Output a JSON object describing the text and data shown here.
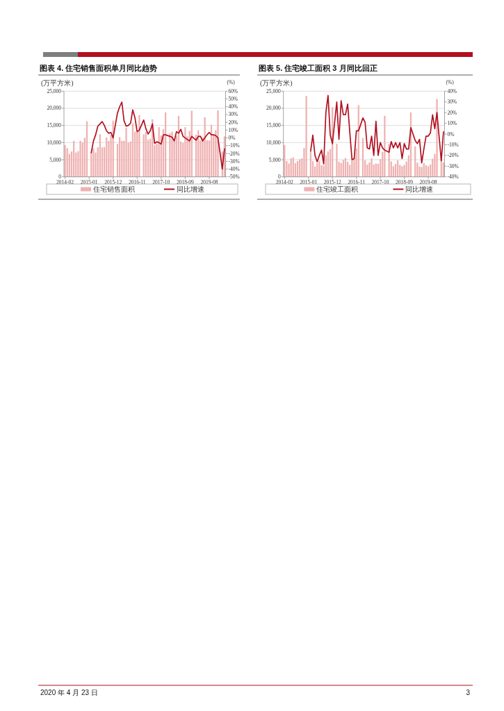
{
  "chart_data": [
    {
      "type": "bar",
      "title": "图表 4. 住宅销售面积单月同比趋势",
      "ylabel": "(万平方米)",
      "y2label": "(%)",
      "categories": [
        "2014-02",
        null,
        null,
        null,
        null,
        null,
        null,
        null,
        null,
        null,
        null,
        "2015-01",
        null,
        null,
        null,
        null,
        null,
        null,
        null,
        null,
        null,
        null,
        "2015-12",
        null,
        null,
        null,
        null,
        null,
        null,
        null,
        null,
        null,
        null,
        "2016-11",
        null,
        null,
        null,
        null,
        null,
        null,
        null,
        null,
        null,
        null,
        "2017-10",
        null,
        null,
        null,
        null,
        null,
        null,
        null,
        null,
        null,
        null,
        "2018-09",
        null,
        null,
        null,
        null,
        null,
        null,
        null,
        null,
        null,
        null,
        "2019-08",
        null,
        null,
        null,
        null,
        null,
        null,
        null
      ],
      "series": [
        {
          "name": "住宅销售面积",
          "color": "#efb1b1",
          "values": [
            9300,
            8400,
            6700,
            7400,
            10500,
            7100,
            7500,
            10500,
            10000,
            11400,
            16200,
            null,
            7300,
            8300,
            7100,
            8600,
            12400,
            8600,
            8700,
            11500,
            10500,
            12200,
            16400,
            null,
            9600,
            11600,
            10500,
            10500,
            14300,
            10000,
            10300,
            15600,
            13200,
            13200,
            18000,
            null,
            12400,
            13100,
            10800,
            11100,
            16800,
            9300,
            9700,
            14500,
            12100,
            13900,
            18800,
            null,
            12700,
            13200,
            10400,
            12000,
            17800,
            10300,
            9900,
            14500,
            11800,
            13400,
            19300,
            null,
            12300,
            13600,
            10600,
            11500,
            17400,
            10700,
            10600,
            15200,
            12200,
            13600,
            19400,
            null,
            7400,
            11800
          ]
        },
        {
          "name": "同比增速",
          "type": "line",
          "axis": "y2",
          "color": "#b2101f",
          "values": [
            null,
            null,
            null,
            null,
            null,
            null,
            null,
            null,
            null,
            null,
            null,
            null,
            -19,
            -4,
            4,
            15,
            18,
            21,
            16,
            9,
            6,
            7,
            0,
            null,
            32,
            40,
            46,
            22,
            15,
            16,
            19,
            36,
            26,
            8,
            10,
            null,
            23,
            12,
            5,
            9,
            18,
            -7,
            -5,
            -6,
            -8,
            4,
            4,
            null,
            2,
            1,
            -4,
            8,
            6,
            11,
            2,
            0,
            -2,
            -4,
            2,
            null,
            -3,
            2,
            2,
            -4,
            0,
            4,
            7,
            4,
            4,
            3,
            0,
            null,
            -40,
            -14
          ]
        }
      ],
      "ylim": [
        0,
        25000
      ],
      "yticks": [
        0,
        {
          "value": 5000,
          "label": "5,000"
        },
        {
          "value": 10000,
          "label": "10,000"
        },
        {
          "value": 15000,
          "label": "15,000"
        },
        {
          "value": 20000,
          "label": "20,000"
        },
        {
          "value": 25000,
          "label": "25,000"
        }
      ],
      "y2lim": [
        -50,
        60
      ],
      "y2ticks": [
        {
          "value": -50,
          "label": "-50%"
        },
        {
          "value": -40,
          "label": "-40%"
        },
        {
          "value": -30,
          "label": "-30%"
        },
        {
          "value": -20,
          "label": "-20%"
        },
        {
          "value": -10,
          "label": "-10%"
        },
        {
          "value": 0,
          "label": "0%"
        },
        {
          "value": 10,
          "label": "10%"
        },
        {
          "value": 20,
          "label": "20%"
        },
        {
          "value": 30,
          "label": "30%"
        },
        {
          "value": 40,
          "label": "40%"
        },
        {
          "value": 50,
          "label": "50%"
        },
        {
          "value": 60,
          "label": "60%"
        }
      ],
      "grid": "y",
      "legend": "bottom"
    },
    {
      "type": "bar",
      "title": "图表 5. 住宅竣工面积 3 月同比回正",
      "ylabel": "(万平方米)",
      "y2label": "(%)",
      "categories": [
        "2014-02",
        null,
        null,
        null,
        null,
        null,
        null,
        null,
        null,
        null,
        null,
        "2015-01",
        null,
        null,
        null,
        null,
        null,
        null,
        null,
        null,
        null,
        null,
        "2015-12",
        null,
        null,
        null,
        null,
        null,
        null,
        null,
        null,
        null,
        null,
        "2016-11",
        null,
        null,
        null,
        null,
        null,
        null,
        null,
        null,
        null,
        null,
        "2017-10",
        null,
        null,
        null,
        null,
        null,
        null,
        null,
        null,
        null,
        null,
        "2018-09",
        null,
        null,
        null,
        null,
        null,
        null,
        null,
        null,
        null,
        null,
        "2019-08",
        null,
        null,
        null,
        null,
        null,
        null,
        null
      ],
      "series": [
        {
          "name": "住宅竣工面积",
          "color": "#efb1b1",
          "values": [
            9300,
            4600,
            3900,
            5400,
            5700,
            4000,
            4600,
            5100,
            5400,
            8400,
            23600,
            null,
            7400,
            4600,
            3000,
            4000,
            4700,
            3400,
            3300,
            6300,
            7400,
            8100,
            20300,
            null,
            9600,
            4400,
            4000,
            4900,
            5500,
            4400,
            3500,
            4800,
            5700,
            8300,
            20900,
            null,
            11300,
            4800,
            3600,
            4200,
            5400,
            3600,
            3900,
            3800,
            5200,
            7300,
            17800,
            null,
            9600,
            4500,
            3100,
            3800,
            4800,
            3500,
            3100,
            3500,
            4500,
            6300,
            18800,
            null,
            8900,
            4100,
            3000,
            2900,
            4000,
            3400,
            3100,
            3600,
            5300,
            6700,
            22700,
            null,
            6700,
            4200
          ]
        },
        {
          "name": "同比增速",
          "type": "line",
          "axis": "y2",
          "color": "#b2101f",
          "values": [
            null,
            null,
            null,
            null,
            null,
            null,
            null,
            null,
            null,
            null,
            null,
            null,
            -16,
            -1,
            -20,
            -26,
            -20,
            -15,
            -28,
            20,
            36,
            -1,
            -9,
            null,
            30,
            -5,
            31,
            18,
            18,
            28,
            1,
            -24,
            -23,
            3,
            3,
            null,
            15,
            11,
            -13,
            -14,
            -2,
            -20,
            12,
            -20,
            -8,
            -13,
            -15,
            null,
            -17,
            -7,
            -13,
            -8,
            -13,
            -8,
            -23,
            -9,
            -14,
            -14,
            6,
            null,
            -6,
            -9,
            -5,
            -27,
            -14,
            -2,
            -2,
            1,
            18,
            5,
            20,
            null,
            -25,
            2
          ]
        }
      ],
      "ylim": [
        0,
        25000
      ],
      "yticks": [
        0,
        {
          "value": 5000,
          "label": "5,000"
        },
        {
          "value": 10000,
          "label": "10,000"
        },
        {
          "value": 15000,
          "label": "15,000"
        },
        {
          "value": 20000,
          "label": "20,000"
        },
        {
          "value": 25000,
          "label": "25,000"
        }
      ],
      "y2lim": [
        -40,
        40
      ],
      "y2ticks": [
        {
          "value": -40,
          "label": "-40%"
        },
        {
          "value": -30,
          "label": "-30%"
        },
        {
          "value": -20,
          "label": "-20%"
        },
        {
          "value": -10,
          "label": "-10%"
        },
        {
          "value": 0,
          "label": "0%"
        },
        {
          "value": 10,
          "label": "10%"
        },
        {
          "value": 20,
          "label": "20%"
        },
        {
          "value": 30,
          "label": "30%"
        },
        {
          "value": 40,
          "label": "40%"
        }
      ],
      "grid": "y",
      "legend": "bottom"
    },
    {
      "type": "other",
      "annotations": [
        "2020 年 4 月 23 日",
        "3"
      ]
    }
  ]
}
